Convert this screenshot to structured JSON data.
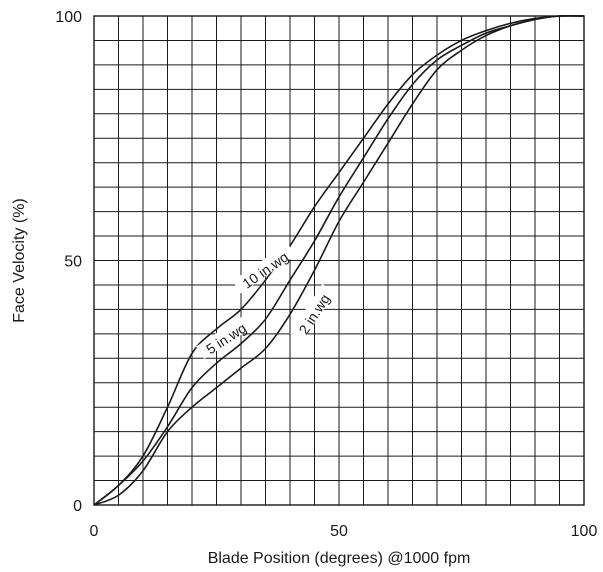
{
  "chart_data": {
    "type": "line",
    "title": "",
    "xlabel": "Blade Position (degrees) @1000 fpm",
    "ylabel": "Face Velocity (%)",
    "xlim": [
      0,
      100
    ],
    "ylim": [
      0,
      100
    ],
    "x_ticks": [
      "0",
      "50",
      "100"
    ],
    "y_ticks": [
      "0",
      "50",
      "100"
    ],
    "grid": true,
    "series": [
      {
        "name": "10 in.wg",
        "x": [
          0,
          5,
          10,
          15,
          20,
          25,
          30,
          35,
          40,
          45,
          50,
          55,
          60,
          65,
          70,
          75,
          80,
          85,
          90,
          95,
          100
        ],
        "y": [
          0,
          4,
          10,
          20,
          31,
          36,
          40,
          46,
          53,
          61,
          68,
          75,
          82,
          88,
          92,
          95,
          97,
          98.5,
          99.5,
          100,
          100
        ]
      },
      {
        "name": "5 in.wg",
        "x": [
          0,
          5,
          10,
          15,
          20,
          25,
          30,
          35,
          40,
          45,
          50,
          55,
          60,
          65,
          70,
          75,
          80,
          85,
          90,
          95,
          100
        ],
        "y": [
          0,
          4,
          9,
          16,
          24,
          29,
          33,
          38,
          46,
          54,
          63,
          71,
          79,
          86,
          91,
          94,
          96.5,
          98,
          99.3,
          100,
          100
        ]
      },
      {
        "name": "2 in.wg",
        "x": [
          0,
          5,
          10,
          15,
          20,
          25,
          30,
          35,
          40,
          45,
          50,
          55,
          60,
          65,
          70,
          75,
          80,
          85,
          90,
          95,
          100
        ],
        "y": [
          0,
          2,
          7,
          15,
          20,
          24,
          28,
          32,
          39,
          48,
          58,
          66,
          74,
          82,
          89,
          93,
          96,
          98,
          99.3,
          100,
          100
        ]
      }
    ],
    "annotations": [
      {
        "text": "10 in.wg",
        "x": 35,
        "y": 48,
        "angle": 35
      },
      {
        "text": "5 in.wg",
        "x": 27,
        "y": 34,
        "angle": 33
      },
      {
        "text": "2 in.wg",
        "x": 45,
        "y": 39,
        "angle": 57
      }
    ]
  }
}
